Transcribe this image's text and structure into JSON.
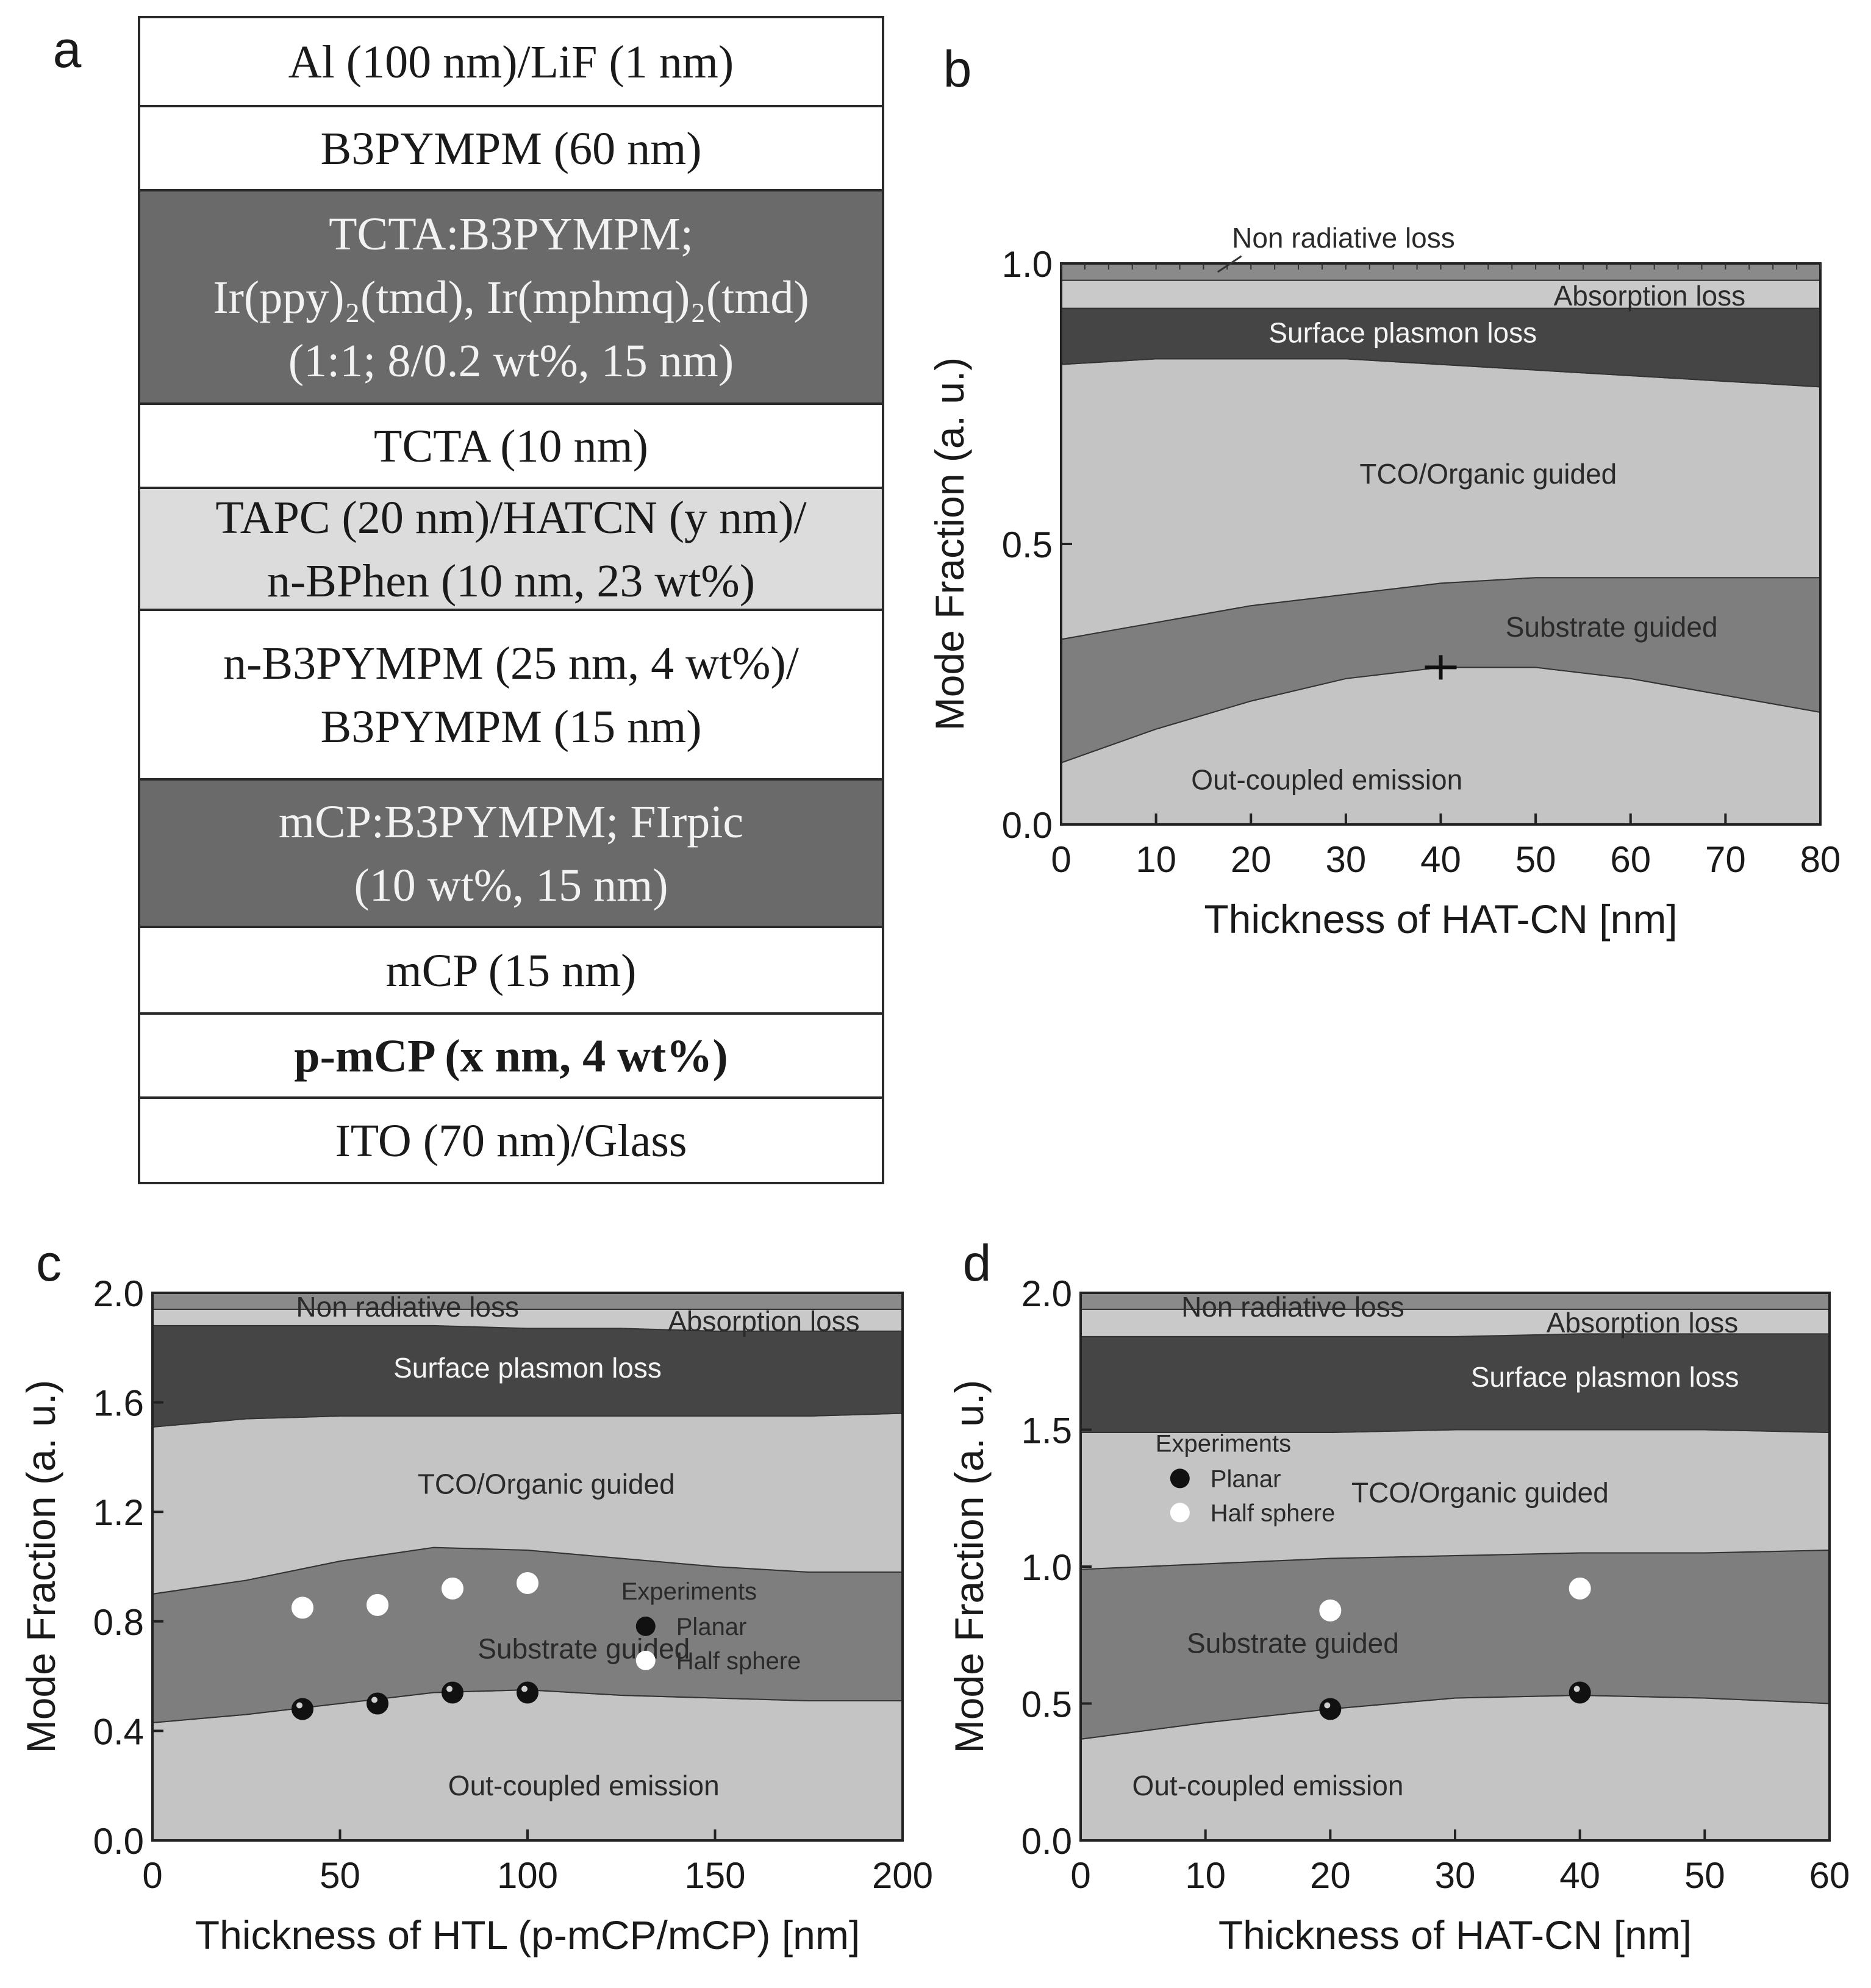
{
  "panel_a": {
    "letter": "a",
    "layers": [
      {
        "lines": [
          "Al (100 nm)/LiF (1 nm)"
        ],
        "fill": "#ffffff"
      },
      {
        "lines": [
          "B3PYMPM (60 nm)"
        ],
        "fill": "#ffffff"
      },
      {
        "lines": [
          "TCTA:B3PYMPM;",
          "Ir(ppy)₂(tmd), Ir(mphmq)₂(tmd)",
          "(1:1; 8/0.2 wt%, 15 nm)"
        ],
        "fill": "#6a6a6a",
        "light": true
      },
      {
        "lines": [
          "TCTA (10 nm)"
        ],
        "fill": "#ffffff"
      },
      {
        "lines": [
          "TAPC (20 nm)/HATCN (y nm)/",
          "n-BPhen (10 nm, 23 wt%)"
        ],
        "fill": "#dcdcdc"
      },
      {
        "lines": [
          "n-B3PYMPM (25 nm, 4  wt%)/",
          "B3PYMPM (15 nm)"
        ],
        "fill": "#ffffff"
      },
      {
        "lines": [
          "mCP:B3PYMPM; FIrpic",
          "(10 wt%, 15 nm)"
        ],
        "fill": "#6a6a6a",
        "light": true
      },
      {
        "lines": [
          "mCP (15 nm)"
        ],
        "fill": "#ffffff"
      },
      {
        "lines": [
          "p-mCP (x nm, 4 wt%)"
        ],
        "fill": "#ffffff",
        "bold": true
      },
      {
        "lines": [
          "ITO (70 nm)/Glass"
        ],
        "fill": "#ffffff"
      }
    ]
  },
  "chart_data": [
    {
      "id": "b",
      "letter": "b",
      "type": "area",
      "xlabel": "Thickness of HAT-CN [nm]",
      "ylabel": "Mode Fraction (a. u.)",
      "xlim": [
        0,
        80
      ],
      "ylim": [
        0,
        1.0
      ],
      "xticks": [
        0,
        10,
        20,
        30,
        40,
        50,
        60,
        70,
        80
      ],
      "yticks": [
        0.0,
        0.5,
        1.0
      ],
      "yticklabels": [
        "0.0",
        "0.5",
        "1.0"
      ],
      "x": [
        0,
        10,
        20,
        30,
        40,
        50,
        60,
        70,
        80
      ],
      "series": [
        {
          "name": "Out-coupled emission",
          "upper": [
            0.11,
            0.17,
            0.22,
            0.26,
            0.28,
            0.28,
            0.26,
            0.23,
            0.2
          ]
        },
        {
          "name": "Substrate guided",
          "upper": [
            0.33,
            0.36,
            0.39,
            0.41,
            0.43,
            0.44,
            0.44,
            0.44,
            0.44
          ]
        },
        {
          "name": "TCO/Organic guided",
          "upper": [
            0.82,
            0.83,
            0.83,
            0.83,
            0.82,
            0.81,
            0.8,
            0.79,
            0.78
          ]
        },
        {
          "name": "Surface plasmon loss",
          "upper": [
            0.92,
            0.92,
            0.92,
            0.92,
            0.92,
            0.92,
            0.92,
            0.92,
            0.92
          ]
        },
        {
          "name": "Absorption loss",
          "upper": [
            0.97,
            0.97,
            0.97,
            0.97,
            0.97,
            0.97,
            0.97,
            0.97,
            0.97
          ]
        },
        {
          "name": "Non radiative loss",
          "upper": [
            1.0,
            1.0,
            1.0,
            1.0,
            1.0,
            1.0,
            1.0,
            1.0,
            1.0
          ]
        }
      ],
      "marker": {
        "x": 40,
        "y": 0.28
      },
      "annotation": "Non radiative loss"
    },
    {
      "id": "c",
      "letter": "c",
      "type": "area",
      "xlabel": "Thickness of HTL (p-mCP/mCP) [nm]",
      "ylabel": "Mode Fraction (a. u.)",
      "xlim": [
        0,
        200
      ],
      "ylim": [
        0,
        2.0
      ],
      "xticks": [
        0,
        50,
        100,
        150,
        200
      ],
      "yticks": [
        0.0,
        0.4,
        0.8,
        1.2,
        1.6,
        2.0
      ],
      "yticklabels": [
        "0.0",
        "0.4",
        "0.8",
        "1.2",
        "1.6",
        "2.0"
      ],
      "x": [
        0,
        25,
        50,
        75,
        100,
        125,
        150,
        175,
        200
      ],
      "series": [
        {
          "name": "Out-coupled emission",
          "upper": [
            0.43,
            0.46,
            0.5,
            0.54,
            0.55,
            0.53,
            0.52,
            0.51,
            0.51
          ]
        },
        {
          "name": "Substrate guided",
          "upper": [
            0.9,
            0.95,
            1.02,
            1.07,
            1.06,
            1.03,
            1.0,
            0.98,
            0.98
          ]
        },
        {
          "name": "TCO/Organic guided",
          "upper": [
            1.51,
            1.54,
            1.55,
            1.55,
            1.55,
            1.55,
            1.55,
            1.55,
            1.56
          ]
        },
        {
          "name": "Surface plasmon loss",
          "upper": [
            1.88,
            1.88,
            1.88,
            1.88,
            1.87,
            1.87,
            1.86,
            1.86,
            1.86
          ]
        },
        {
          "name": "Absorption loss",
          "upper": [
            1.94,
            1.94,
            1.94,
            1.94,
            1.94,
            1.94,
            1.94,
            1.94,
            1.94
          ]
        },
        {
          "name": "Non radiative loss",
          "upper": [
            2.0,
            2.0,
            2.0,
            2.0,
            2.0,
            2.0,
            2.0,
            2.0,
            2.0
          ]
        }
      ],
      "experiments": {
        "title": "Experiments",
        "planar_label": "Planar",
        "half_sphere_label": "Half sphere",
        "planar": [
          {
            "x": 40,
            "y": 0.48
          },
          {
            "x": 60,
            "y": 0.5
          },
          {
            "x": 80,
            "y": 0.54
          },
          {
            "x": 100,
            "y": 0.54
          }
        ],
        "half_sphere": [
          {
            "x": 40,
            "y": 0.85
          },
          {
            "x": 60,
            "y": 0.86
          },
          {
            "x": 80,
            "y": 0.92
          },
          {
            "x": 100,
            "y": 0.94
          }
        ]
      }
    },
    {
      "id": "d",
      "letter": "d",
      "type": "area",
      "xlabel": "Thickness of HAT-CN [nm]",
      "ylabel": "Mode Fraction (a. u.)",
      "xlim": [
        0,
        60
      ],
      "ylim": [
        0,
        2.0
      ],
      "xticks": [
        0,
        10,
        20,
        30,
        40,
        50,
        60
      ],
      "yticks": [
        0.0,
        0.5,
        1.0,
        1.5,
        2.0
      ],
      "yticklabels": [
        "0.0",
        "0.5",
        "1.0",
        "1.5",
        "2.0"
      ],
      "x": [
        0,
        10,
        20,
        30,
        40,
        50,
        60
      ],
      "series": [
        {
          "name": "Out-coupled emission",
          "upper": [
            0.37,
            0.43,
            0.48,
            0.52,
            0.53,
            0.52,
            0.5
          ]
        },
        {
          "name": "Substrate guided",
          "upper": [
            0.99,
            1.01,
            1.03,
            1.04,
            1.05,
            1.05,
            1.06
          ]
        },
        {
          "name": "TCO/Organic guided",
          "upper": [
            1.49,
            1.49,
            1.49,
            1.5,
            1.5,
            1.5,
            1.49
          ]
        },
        {
          "name": "Surface plasmon loss",
          "upper": [
            1.84,
            1.84,
            1.84,
            1.84,
            1.85,
            1.85,
            1.85
          ]
        },
        {
          "name": "Absorption loss",
          "upper": [
            1.94,
            1.94,
            1.94,
            1.94,
            1.94,
            1.94,
            1.94
          ]
        },
        {
          "name": "Non radiative loss",
          "upper": [
            2.0,
            2.0,
            2.0,
            2.0,
            2.0,
            2.0,
            2.0
          ]
        }
      ],
      "experiments": {
        "title": "Experiments",
        "planar_label": "Planar",
        "half_sphere_label": "Half sphere",
        "planar": [
          {
            "x": 20,
            "y": 0.48
          },
          {
            "x": 40,
            "y": 0.54
          }
        ],
        "half_sphere": [
          {
            "x": 20,
            "y": 0.84
          },
          {
            "x": 40,
            "y": 0.92
          }
        ]
      }
    }
  ],
  "colors": {
    "Out-coupled emission": "#c4c4c4",
    "Substrate guided": "#7e7e7e",
    "TCO/Organic guided": "#c4c4c4",
    "Surface plasmon loss": "#454545",
    "Absorption loss": "#c9c9c9",
    "Non radiative loss": "#8a8a8a"
  }
}
